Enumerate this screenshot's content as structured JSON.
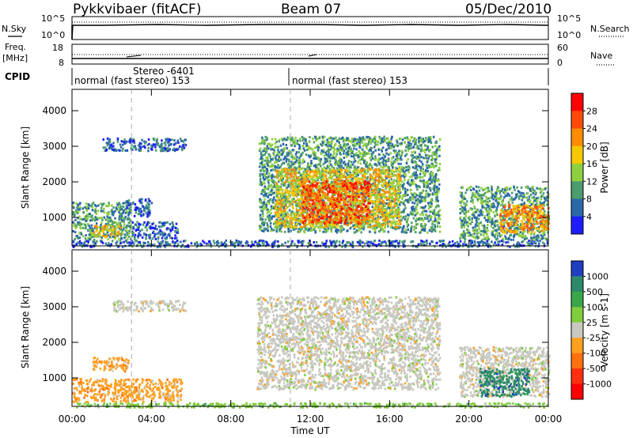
{
  "header": {
    "station": "Pykkvibaer (fitACF)",
    "beam": "Beam 07",
    "date": "05/Dec/2010"
  },
  "params": {
    "nsky_label": "N.Sky",
    "nsearch_label": "N.Search",
    "freq_label_1": "Freq.",
    "freq_label_2": "[MHz]",
    "nave_label": "Nave",
    "cpid_label": "CPID",
    "nsky_ticks": [
      "10^5",
      "10^0"
    ],
    "nsearch_ticks": [
      "10^5",
      "10^0"
    ],
    "freq_ticks": [
      "18",
      "8"
    ],
    "nave_ticks": [
      "60",
      "0"
    ],
    "cpid_segments": [
      {
        "label": "normal (fast stereo) 153",
        "start_hour": 0,
        "end_hour": 11
      },
      {
        "label": "normal (fast stereo) 153",
        "start_hour": 11,
        "end_hour": 24
      }
    ],
    "cpid_note": "Stereo -6401",
    "cpid_note_hour": 3
  },
  "chart_data": [
    {
      "type": "heatmap",
      "name": "power",
      "ylabel": "Slant Range [km]",
      "ylim": [
        200,
        4600
      ],
      "yticks": [
        1000,
        2000,
        3000,
        4000
      ],
      "xlim": [
        0,
        24
      ],
      "colorbar": {
        "label": "Power [dB]",
        "ticks": [
          "28",
          "24",
          "20",
          "16",
          "12",
          "8",
          "4"
        ],
        "colors": [
          "#ff0000",
          "#ff4a0a",
          "#ff8c00",
          "#f5c800",
          "#8fd040",
          "#4b9c6e",
          "#2a68a8",
          "#1c1cff"
        ]
      },
      "echo_regions": [
        {
          "t0": 0.0,
          "t1": 3.0,
          "r0": 380,
          "r1": 1450,
          "level": 2
        },
        {
          "t0": 0.9,
          "t1": 2.4,
          "r0": 480,
          "r1": 800,
          "level": 4
        },
        {
          "t0": 3.0,
          "t1": 5.3,
          "r0": 420,
          "r1": 900,
          "level": 1
        },
        {
          "t0": 2.7,
          "t1": 4.0,
          "r0": 1050,
          "r1": 1550,
          "level": 1
        },
        {
          "t0": 1.5,
          "t1": 5.7,
          "r0": 2900,
          "r1": 3250,
          "level": 1
        },
        {
          "t0": 9.4,
          "t1": 18.5,
          "r0": 600,
          "r1": 3300,
          "level": 2
        },
        {
          "t0": 10.2,
          "t1": 16.5,
          "r0": 750,
          "r1": 2400,
          "level": 4
        },
        {
          "t0": 11.5,
          "t1": 15.0,
          "r0": 850,
          "r1": 2050,
          "level": 6
        },
        {
          "t0": 19.5,
          "t1": 24.0,
          "r0": 400,
          "r1": 1900,
          "level": 2
        },
        {
          "t0": 21.5,
          "t1": 24.0,
          "r0": 600,
          "r1": 1400,
          "level": 5
        },
        {
          "t0": 0.0,
          "t1": 24.0,
          "r0": 200,
          "r1": 380,
          "level": 1
        }
      ]
    },
    {
      "type": "heatmap",
      "name": "velocity",
      "ylabel": "Slant Range [km]",
      "xlabel": "Time UT",
      "ylim": [
        200,
        4600
      ],
      "yticks": [
        1000,
        2000,
        3000,
        4000
      ],
      "xlim": [
        0,
        24
      ],
      "xticks": [
        "00:00",
        "04:00",
        "08:00",
        "12:00",
        "16:00",
        "20:00",
        "00:00"
      ],
      "colorbar": {
        "label": "Velocity [m s-1]",
        "ticks": [
          "1000",
          "500",
          "100",
          "25",
          "-25",
          "-100",
          "-500",
          "-1000"
        ],
        "colors": [
          "#1f3fbf",
          "#2c8a6a",
          "#3aa64a",
          "#7fcc3c",
          "#c8c8c0",
          "#ffa020",
          "#ff7010",
          "#ff3010",
          "#ff0000"
        ]
      },
      "echo_regions": [
        {
          "t0": 0.0,
          "t1": 5.5,
          "r0": 350,
          "r1": 1000,
          "level": 5
        },
        {
          "t0": 1.0,
          "t1": 2.8,
          "r0": 1200,
          "r1": 1600,
          "level": 5
        },
        {
          "t0": 2.0,
          "t1": 5.7,
          "r0": 2900,
          "r1": 3200,
          "level": 4
        },
        {
          "t0": 9.3,
          "t1": 18.5,
          "r0": 700,
          "r1": 3300,
          "level": 4
        },
        {
          "t0": 19.5,
          "t1": 24.0,
          "r0": 500,
          "r1": 1900,
          "level": 4
        },
        {
          "t0": 20.5,
          "t1": 23.0,
          "r0": 500,
          "r1": 1300,
          "level": 1
        },
        {
          "t0": 0.0,
          "t1": 24.0,
          "r0": 200,
          "r1": 320,
          "level": 3
        }
      ]
    }
  ]
}
